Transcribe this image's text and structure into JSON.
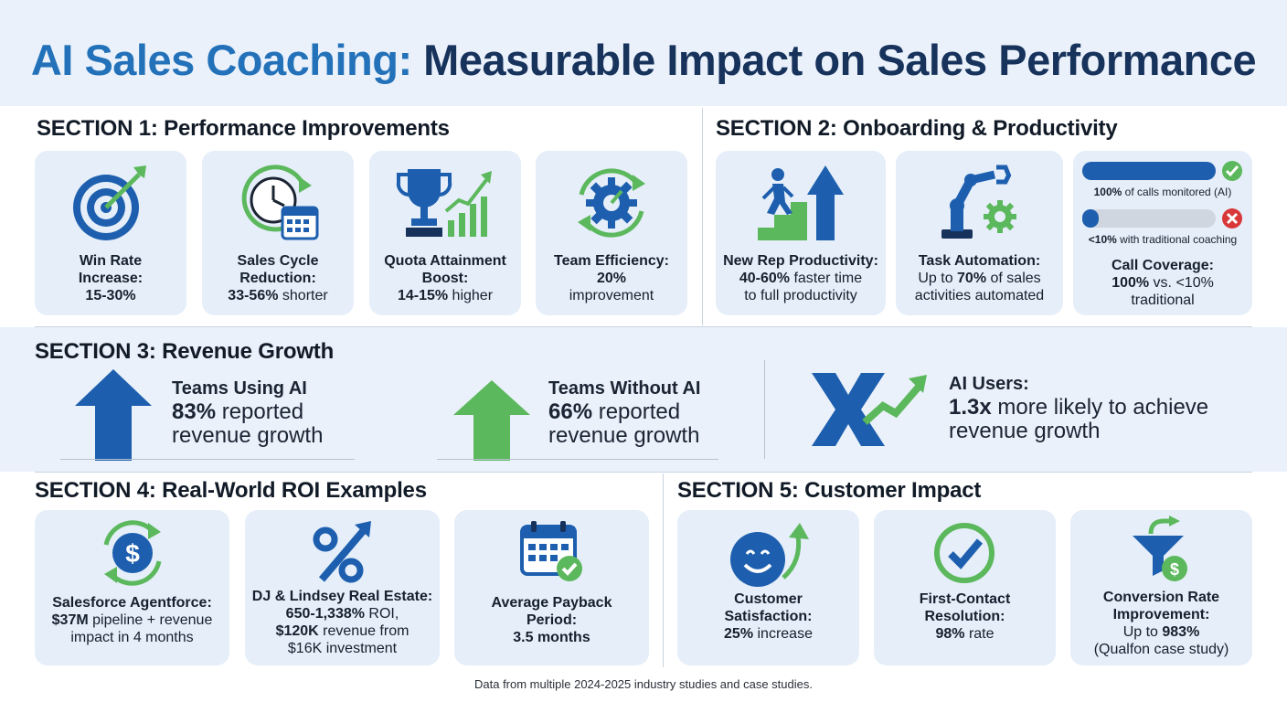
{
  "title": {
    "accent": "AI Sales Coaching:",
    "rest": " Measurable Impact on Sales Performance"
  },
  "section1": {
    "title": "SECTION 1: Performance Improvements",
    "cards": [
      {
        "icon": "target-icon",
        "l1": "Win Rate",
        "l2": "Increase:",
        "l3": "15-30%"
      },
      {
        "icon": "clock-calendar-icon",
        "l1": "Sales Cycle",
        "l2": "Reduction:",
        "l3b": "33-56%",
        "l3": " shorter"
      },
      {
        "icon": "trophy-chart-icon",
        "l1": "Quota Attainment",
        "l2": "Boost:",
        "l3b": "14-15%",
        "l3": " higher"
      },
      {
        "icon": "gear-cycle-icon",
        "l1": "Team Efficiency:",
        "l2": "20%",
        "l3": "improvement"
      }
    ]
  },
  "section2": {
    "title": "SECTION 2: Onboarding & Productivity",
    "card1": {
      "icon": "climbing-stairs-icon",
      "l1": "New Rep Productivity:",
      "l2b": "40-60%",
      "l2": " faster time",
      "l3": "to full productivity"
    },
    "card2": {
      "icon": "robot-arm-icon",
      "l1": "Task Automation:",
      "l2a": "Up to ",
      "l2b": "70%",
      "l2c": " of sales",
      "l3": "activities automated"
    },
    "card3": {
      "bar1_b": "100%",
      "bar1": " of calls monitored (AI)",
      "bar1_fill": 1.0,
      "bar2_b": "<10%",
      "bar2": " with traditional coaching",
      "bar2_fill": 0.1,
      "l1": "Call Coverage:",
      "l2b": "100%",
      "l2": " vs. <10%",
      "l3": "traditional"
    }
  },
  "section3": {
    "title": "SECTION 3: Revenue Growth",
    "items": [
      {
        "icon": "arrow-up-blue-icon",
        "lead": "Teams Using AI",
        "pct": "83%",
        "l2": " reported",
        "l3": "revenue growth"
      },
      {
        "icon": "arrow-up-green-icon",
        "lead": "Teams Without AI",
        "pct": "66%",
        "l2": " reported",
        "l3": "revenue growth"
      },
      {
        "icon": "multiplier-x-icon",
        "lead": "AI Users:",
        "pct": "1.3x",
        "l2": " more likely to achieve",
        "l3": "revenue growth"
      }
    ]
  },
  "section4": {
    "title": "SECTION 4: Real-World ROI Examples",
    "card1": {
      "icon": "dollar-cycle-icon",
      "l1": "Salesforce Agentforce:",
      "l2b": "$37M",
      "l2": " pipeline + revenue",
      "l3": "impact in 4 months"
    },
    "card2": {
      "icon": "percent-arrow-icon",
      "l1": "DJ & Lindsey Real Estate:",
      "l2b": "650-1,338%",
      "l2": " ROI,",
      "l3b": "$120K",
      "l3": " revenue from",
      "l4": "$16K investment"
    },
    "card3": {
      "icon": "calendar-check-icon",
      "l1": "Average Payback",
      "l2": "Period:",
      "l3": "3.5 months"
    }
  },
  "section5": {
    "title": "SECTION 5: Customer Impact",
    "card1": {
      "icon": "smiley-arrow-icon",
      "l1": "Customer",
      "l2": "Satisfaction:",
      "l3b": "25%",
      "l3": " increase"
    },
    "card2": {
      "icon": "check-circle-icon",
      "l1": "First-Contact",
      "l2": "Resolution:",
      "l3b": "98%",
      "l3": " rate"
    },
    "card3": {
      "icon": "funnel-dollar-icon",
      "l1": "Conversion Rate",
      "l2": "Improvement:",
      "l3a": "Up to ",
      "l3b": "983%",
      "l4": "(Qualfon case study)"
    }
  },
  "footer": "Data from multiple 2024-2025 industry studies and case studies.",
  "colors": {
    "navy": "#17335c",
    "blue": "#2371b9",
    "green": "#5cb85c",
    "card": "#e5eef9",
    "band": "#eaf1fb"
  }
}
